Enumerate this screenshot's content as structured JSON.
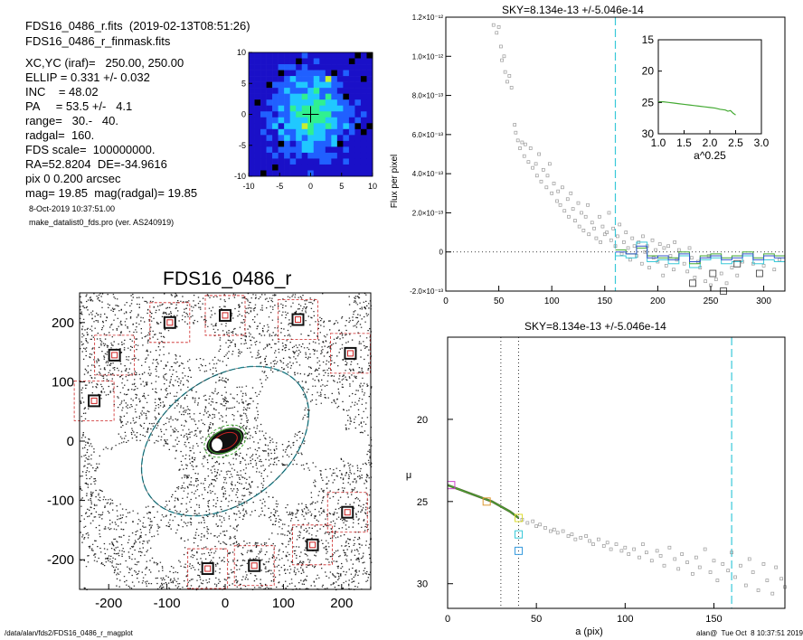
{
  "header": {
    "fits_line": "FDS16_0486_r.fits  (2019-02-13T08:51:26)",
    "mask_line": "FDS16_0486_r_finmask.fits",
    "params": [
      "XC,YC (iraf)=   250.00, 250.00",
      "ELLIP = 0.331 +/- 0.032",
      "INC    = 48.02",
      "PA     = 53.5 +/-   4.1",
      "range=   30.-   40.",
      "radgal=  160.",
      "FDS scale=  100000000.",
      "RA=52.8204  DE=-34.9616",
      "pix 0 0.200 arcsec",
      "mag= 19.85  mag(radgal)= 19.85"
    ],
    "date_line": "8-Oct-2019 10:37:51.00",
    "program_line": "make_datalist0_fds.pro (ver. AS240919)"
  },
  "footer": {
    "path": "/data/alan/fds2/FDS16_0486_r_magplot",
    "user": "alan@  Tue Oct  8 10:37:51 2019"
  },
  "colors": {
    "cyan": "#38c8d8",
    "green": "#44aa33",
    "magenta": "#cc44cc",
    "orange": "#dd9933",
    "red": "#cc2222",
    "grey": "#999999"
  },
  "chart_data": [
    {
      "id": "thumbnail",
      "type": "heatmap",
      "xlim": [
        -10,
        10
      ],
      "ylim": [
        -10,
        10
      ],
      "x_ticks": [
        "-10",
        "-5",
        "0",
        "5",
        "10"
      ],
      "y_ticks": [
        "10",
        "5",
        "0",
        "-5",
        "-10"
      ],
      "colormap": [
        "#000000",
        "#1a10c8",
        "#2060ff",
        "#20c8ff",
        "#30f090",
        "#c8f030"
      ]
    },
    {
      "id": "galaxy_image",
      "type": "scatter",
      "title": "FDS16_0486_r",
      "xlim": [
        -250,
        250
      ],
      "ylim": [
        -250,
        250
      ],
      "x_ticks": [
        "-200",
        "-100",
        "0",
        "100",
        "200"
      ],
      "y_ticks": [
        "200",
        "100",
        "0",
        "-100",
        "-200"
      ],
      "ellipse": {
        "a": 160,
        "b": 107,
        "pa_deg": 53.5
      },
      "stars": [
        [
          -95,
          200
        ],
        [
          0,
          212
        ],
        [
          125,
          205
        ],
        [
          -190,
          145
        ],
        [
          215,
          148
        ],
        [
          -225,
          68
        ],
        [
          210,
          -120
        ],
        [
          150,
          -175
        ],
        [
          -30,
          -215
        ],
        [
          50,
          -210
        ]
      ]
    },
    {
      "id": "flux_profile",
      "type": "scatter",
      "title": "SKY=8.134e-13 +/-5.046e-14",
      "xlabel": "",
      "ylabel": "Flux per pixel",
      "xlim": [
        0,
        320
      ],
      "ylim": [
        -2e-13,
        1.2e-12
      ],
      "x_ticks": [
        "0",
        "50",
        "100",
        "150",
        "200",
        "250",
        "300"
      ],
      "y_ticks": [
        "-2.0×10⁻¹³",
        "0",
        "2.0×10⁻¹³",
        "4.0×10⁻¹³",
        "6.0×10⁻¹³",
        "8.0×10⁻¹³",
        "1.0×10⁻¹²",
        "1.2×10⁻¹²"
      ],
      "vline": 160,
      "points": [
        [
          45,
          1.16e-12
        ],
        [
          48,
          1.12e-12
        ],
        [
          50,
          1.15e-12
        ],
        [
          52,
          1.05e-12
        ],
        [
          53,
          9.8e-13
        ],
        [
          55,
          1e-12
        ],
        [
          56,
          9.2e-13
        ],
        [
          58,
          8.7e-13
        ],
        [
          60,
          9e-13
        ],
        [
          62,
          8.4e-13
        ],
        [
          65,
          6.5e-13
        ],
        [
          66,
          6.1e-13
        ],
        [
          68,
          5.7e-13
        ],
        [
          70,
          5.3e-13
        ],
        [
          72,
          5.6e-13
        ],
        [
          74,
          4.9e-13
        ],
        [
          75,
          5.5e-13
        ],
        [
          78,
          4.6e-13
        ],
        [
          80,
          5.3e-13
        ],
        [
          82,
          4.3e-13
        ],
        [
          85,
          4.5e-13
        ],
        [
          86,
          3.9e-13
        ],
        [
          88,
          5e-13
        ],
        [
          90,
          3.6e-13
        ],
        [
          92,
          4.2e-13
        ],
        [
          95,
          3.3e-13
        ],
        [
          96,
          3.9e-13
        ],
        [
          98,
          4.5e-13
        ],
        [
          100,
          3e-13
        ],
        [
          102,
          3.5e-13
        ],
        [
          105,
          2.6e-13
        ],
        [
          106,
          3.1e-13
        ],
        [
          108,
          2.4e-13
        ],
        [
          110,
          3.3e-13
        ],
        [
          112,
          2.1e-13
        ],
        [
          115,
          2.7e-13
        ],
        [
          116,
          1.8e-13
        ],
        [
          118,
          3e-13
        ],
        [
          120,
          2.2e-13
        ],
        [
          122,
          1.6e-13
        ],
        [
          125,
          2.5e-13
        ],
        [
          126,
          1.3e-13
        ],
        [
          128,
          2e-13
        ],
        [
          130,
          1.1e-13
        ],
        [
          132,
          1.8e-13
        ],
        [
          134,
          2.4e-13
        ],
        [
          135,
          9e-14
        ],
        [
          138,
          1.5e-13
        ],
        [
          140,
          1.2e-13
        ],
        [
          142,
          7e-14
        ],
        [
          145,
          1.8e-13
        ],
        [
          146,
          5e-14
        ],
        [
          148,
          1.3e-13
        ],
        [
          150,
          9e-14
        ],
        [
          152,
          1e-13
        ],
        [
          154,
          2e-13
        ],
        [
          156,
          6e-14
        ],
        [
          158,
          1.2e-13
        ],
        [
          160,
          3e-14
        ],
        [
          162,
          8e-14
        ],
        [
          164,
          1.4e-13
        ],
        [
          166,
          -1e-14
        ],
        [
          168,
          5e-14
        ],
        [
          170,
          1e-13
        ],
        [
          172,
          2e-14
        ],
        [
          174,
          -4e-14
        ],
        [
          176,
          7e-14
        ],
        [
          178,
          3e-14
        ],
        [
          180,
          -2e-14
        ],
        [
          182,
          5e-14
        ],
        [
          185,
          -6e-14
        ],
        [
          186,
          8e-14
        ],
        [
          188,
          0
        ],
        [
          190,
          3e-14
        ],
        [
          192,
          -8e-14
        ],
        [
          195,
          6e-14
        ],
        [
          196,
          -3e-14
        ],
        [
          198,
          1e-14
        ],
        [
          200,
          -5e-14
        ],
        [
          202,
          4e-14
        ],
        [
          205,
          -1.2e-13
        ],
        [
          206,
          2e-14
        ],
        [
          208,
          -7e-14
        ],
        [
          210,
          3e-14
        ],
        [
          212,
          -2e-14
        ],
        [
          215,
          -9e-14
        ],
        [
          216,
          5e-14
        ],
        [
          218,
          -4e-14
        ],
        [
          220,
          1e-14
        ],
        [
          225,
          -6e-14
        ],
        [
          228,
          -1e-13
        ],
        [
          230,
          2e-14
        ],
        [
          232,
          -3e-14
        ],
        [
          235,
          -1.3e-13
        ],
        [
          238,
          -5e-14
        ],
        [
          240,
          -8e-14
        ],
        [
          245,
          -1.5e-13
        ],
        [
          248,
          -2e-14
        ],
        [
          250,
          -1.7e-13
        ],
        [
          255,
          -1.4e-13
        ],
        [
          260,
          -1.1e-13
        ],
        [
          265,
          -1.6e-13
        ],
        [
          270,
          -8e-14
        ],
        [
          275,
          -1.2e-13
        ],
        [
          280,
          -5e-14
        ],
        [
          290,
          -6e-14
        ],
        [
          300,
          -7e-14
        ],
        [
          310,
          -9e-14
        ],
        [
          315,
          -4e-14
        ]
      ],
      "squares": [
        [
          233,
          -1.6e-13
        ],
        [
          252,
          -1.1e-13
        ],
        [
          262,
          -2e-13
        ],
        [
          275,
          -6e-14
        ],
        [
          296,
          -1.1e-13
        ]
      ],
      "step_blue": [
        [
          160,
          0
        ],
        [
          170,
          -1e-14
        ],
        [
          180,
          3e-14
        ],
        [
          190,
          -3e-14
        ],
        [
          200,
          -2e-14
        ],
        [
          210,
          -4e-14
        ],
        [
          220,
          -1e-14
        ],
        [
          230,
          -5e-14
        ],
        [
          240,
          -3e-14
        ],
        [
          250,
          -2e-14
        ],
        [
          260,
          -4e-14
        ],
        [
          270,
          -3e-14
        ],
        [
          280,
          -1e-14
        ],
        [
          290,
          -4e-14
        ],
        [
          300,
          -2e-14
        ],
        [
          310,
          -3e-14
        ],
        [
          320,
          -3e-14
        ]
      ],
      "step_green": [
        [
          160,
          1e-14
        ],
        [
          170,
          -1e-14
        ],
        [
          180,
          2e-14
        ],
        [
          190,
          -2e-14
        ],
        [
          200,
          -3e-14
        ],
        [
          210,
          -3e-14
        ],
        [
          220,
          0
        ],
        [
          230,
          -6e-14
        ],
        [
          240,
          -2e-14
        ],
        [
          250,
          -1e-14
        ],
        [
          260,
          -3e-14
        ],
        [
          270,
          -2e-14
        ],
        [
          280,
          0
        ],
        [
          290,
          -3e-14
        ],
        [
          300,
          -1e-14
        ],
        [
          310,
          -2e-14
        ],
        [
          320,
          -2e-14
        ]
      ],
      "step_cyan": [
        [
          160,
          -2e-14
        ],
        [
          170,
          -3e-14
        ],
        [
          180,
          5e-14
        ],
        [
          190,
          -5e-14
        ],
        [
          200,
          -4e-14
        ],
        [
          210,
          -6e-14
        ],
        [
          220,
          -2e-14
        ],
        [
          230,
          -8e-14
        ],
        [
          240,
          -4e-14
        ],
        [
          250,
          -3e-14
        ],
        [
          260,
          -6e-14
        ],
        [
          270,
          -5e-14
        ],
        [
          280,
          -2e-14
        ],
        [
          290,
          -6e-14
        ],
        [
          300,
          -4e-14
        ],
        [
          310,
          -5e-14
        ],
        [
          320,
          -5e-14
        ]
      ]
    },
    {
      "id": "inset_profile",
      "type": "line",
      "xlabel": "a^0.25",
      "ylabel": "",
      "xlim": [
        1.0,
        3.0
      ],
      "ylim": [
        30,
        15
      ],
      "x_ticks": [
        "1.0",
        "1.5",
        "2.0",
        "2.5",
        "3.0"
      ],
      "y_ticks": [
        "15",
        "20",
        "25",
        "30"
      ],
      "points": [
        [
          1.0,
          24.9
        ],
        [
          1.1,
          24.9
        ],
        [
          1.2,
          25.0
        ],
        [
          1.3,
          25.1
        ],
        [
          1.4,
          25.2
        ],
        [
          1.5,
          25.3
        ],
        [
          1.6,
          25.4
        ],
        [
          1.7,
          25.5
        ],
        [
          1.8,
          25.6
        ],
        [
          1.9,
          25.7
        ],
        [
          2.0,
          25.8
        ],
        [
          2.1,
          25.9
        ],
        [
          2.2,
          26.1
        ],
        [
          2.3,
          26.2
        ],
        [
          2.35,
          26.4
        ],
        [
          2.4,
          26.3
        ],
        [
          2.45,
          26.7
        ],
        [
          2.5,
          27.0
        ]
      ]
    },
    {
      "id": "mu_profile",
      "type": "scatter",
      "title": "SKY=8.134e-13 +/-5.046e-14",
      "xlabel": "a (pix)",
      "ylabel": "μ",
      "xlim": [
        0,
        190
      ],
      "ylim": [
        31.5,
        15
      ],
      "x_ticks": [
        "0",
        "50",
        "100",
        "150"
      ],
      "y_ticks": [
        "20",
        "25",
        "30"
      ],
      "vlines_dotted": [
        30,
        40
      ],
      "vline": 160,
      "points": [
        [
          42,
          26.1
        ],
        [
          45,
          26.3
        ],
        [
          48,
          26.2
        ],
        [
          50,
          26.5
        ],
        [
          52,
          26.4
        ],
        [
          55,
          26.6
        ],
        [
          58,
          26.8
        ],
        [
          60,
          26.7
        ],
        [
          62,
          26.9
        ],
        [
          65,
          26.8
        ],
        [
          68,
          27.1
        ],
        [
          70,
          27.0
        ],
        [
          72,
          27.3
        ],
        [
          75,
          27.2
        ],
        [
          78,
          27.1
        ],
        [
          80,
          27.4
        ],
        [
          82,
          27.6
        ],
        [
          85,
          27.3
        ],
        [
          88,
          27.7
        ],
        [
          90,
          27.5
        ],
        [
          92,
          27.9
        ],
        [
          95,
          27.6
        ],
        [
          98,
          28.0
        ],
        [
          100,
          27.8
        ],
        [
          102,
          28.2
        ],
        [
          105,
          27.9
        ],
        [
          108,
          28.4
        ],
        [
          110,
          27.6
        ],
        [
          112,
          28.1
        ],
        [
          115,
          28.6
        ],
        [
          118,
          28.0
        ],
        [
          120,
          28.3
        ],
        [
          122,
          28.9
        ],
        [
          125,
          27.8
        ],
        [
          128,
          28.5
        ],
        [
          130,
          29.1
        ],
        [
          132,
          28.2
        ],
        [
          135,
          28.7
        ],
        [
          138,
          29.4
        ],
        [
          140,
          28.4
        ],
        [
          142,
          29.0
        ],
        [
          145,
          27.9
        ],
        [
          148,
          29.3
        ],
        [
          150,
          28.6
        ],
        [
          152,
          29.8
        ],
        [
          155,
          28.8
        ],
        [
          158,
          29.2
        ],
        [
          160,
          28.1
        ],
        [
          162,
          29.6
        ],
        [
          165,
          28.9
        ],
        [
          168,
          30.1
        ],
        [
          170,
          28.5
        ],
        [
          172,
          29.3
        ],
        [
          175,
          30.4
        ],
        [
          178,
          28.8
        ],
        [
          180,
          29.8
        ],
        [
          183,
          30.6
        ],
        [
          185,
          29.0
        ],
        [
          188,
          29.7
        ],
        [
          190,
          30.2
        ]
      ],
      "fit_line": [
        [
          0,
          24.0
        ],
        [
          5,
          24.2
        ],
        [
          10,
          24.4
        ],
        [
          15,
          24.6
        ],
        [
          20,
          24.8
        ],
        [
          25,
          25.0
        ],
        [
          30,
          25.3
        ],
        [
          35,
          25.6
        ],
        [
          40,
          26.0
        ]
      ],
      "markers": [
        {
          "x": 2,
          "y": 24.0,
          "color": "#cc44cc"
        },
        {
          "x": 22,
          "y": 25.0,
          "color": "#dd9933"
        },
        {
          "x": 40,
          "y": 26.0,
          "color": "#dddd33"
        },
        {
          "x": 40,
          "y": 27.0,
          "color": "#38c8d8"
        },
        {
          "x": 40,
          "y": 28.0,
          "color": "#3399dd"
        }
      ]
    }
  ]
}
